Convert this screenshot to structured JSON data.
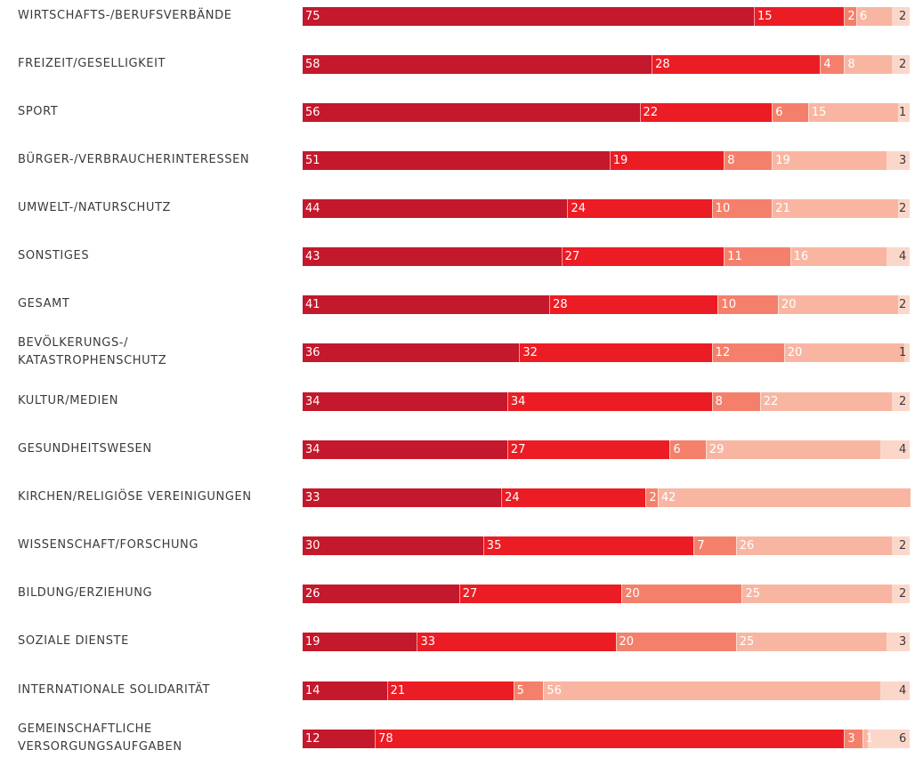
{
  "colors": {
    "series": [
      "#c4182c",
      "#ec1c24",
      "#f4806b",
      "#f8b6a2"
    ],
    "tail_bg": "#fbd7ca"
  },
  "chart_data": {
    "type": "bar",
    "orientation": "horizontal",
    "stacked": true,
    "categories": [
      "WIRTSCHAFTS-/BERUFSVERBÄNDE",
      "FREIZEIT/GESELLIGKEIT",
      "SPORT",
      "BÜRGER-/VERBRAUCHERINTERESSEN",
      "UMWELT-/NATURSCHUTZ",
      "SONSTIGES",
      "GESAMT",
      "BEVÖLKERUNGS-/ KATASTROPHENSCHUTZ",
      "KULTUR/MEDIEN",
      "GESUNDHEITSWESEN",
      "KIRCHEN/RELIGIÖSE VEREINIGUNGEN",
      "WISSENSCHAFT/FORSCHUNG",
      "BILDUNG/ERZIEHUNG",
      "SOZIALE DIENSTE",
      "INTERNATIONALE SOLIDARITÄT",
      "GEMEINSCHAFTLICHE VERSORGUNGSAUFGABEN"
    ],
    "category_lines": [
      [
        "WIRTSCHAFTS-/BERUFSVERBÄNDE"
      ],
      [
        "FREIZEIT/GESELLIGKEIT"
      ],
      [
        "SPORT"
      ],
      [
        "BÜRGER-/VERBRAUCHERINTERESSEN"
      ],
      [
        "UMWELT-/NATURSCHUTZ"
      ],
      [
        "SONSTIGES"
      ],
      [
        "GESAMT"
      ],
      [
        "BEVÖLKERUNGS-/",
        "KATASTROPHENSCHUTZ"
      ],
      [
        "KULTUR/MEDIEN"
      ],
      [
        "GESUNDHEITSWESEN"
      ],
      [
        "KIRCHEN/RELIGIÖSE VEREINIGUNGEN"
      ],
      [
        "WISSENSCHAFT/FORSCHUNG"
      ],
      [
        "BILDUNG/ERZIEHUNG"
      ],
      [
        "SOZIALE DIENSTE"
      ],
      [
        "INTERNATIONALE SOLIDARITÄT"
      ],
      [
        "GEMEINSCHAFTLICHE",
        "VERSORGUNGSAUFGABEN"
      ]
    ],
    "series": [
      {
        "values": [
          75,
          58,
          56,
          51,
          44,
          43,
          41,
          36,
          34,
          34,
          33,
          30,
          26,
          19,
          14,
          12
        ]
      },
      {
        "values": [
          15,
          28,
          22,
          19,
          24,
          27,
          28,
          32,
          34,
          27,
          24,
          35,
          27,
          33,
          21,
          78
        ]
      },
      {
        "values": [
          2,
          4,
          6,
          8,
          10,
          11,
          10,
          12,
          8,
          6,
          2,
          7,
          20,
          20,
          5,
          3
        ]
      },
      {
        "values": [
          6,
          8,
          15,
          19,
          21,
          16,
          20,
          20,
          22,
          29,
          42,
          26,
          25,
          25,
          56,
          1
        ]
      },
      {
        "values": [
          2,
          2,
          1,
          3,
          2,
          4,
          2,
          1,
          2,
          4,
          null,
          2,
          2,
          3,
          4,
          6
        ]
      }
    ],
    "xlim": [
      0,
      100
    ],
    "grid": false,
    "legend": "none"
  }
}
